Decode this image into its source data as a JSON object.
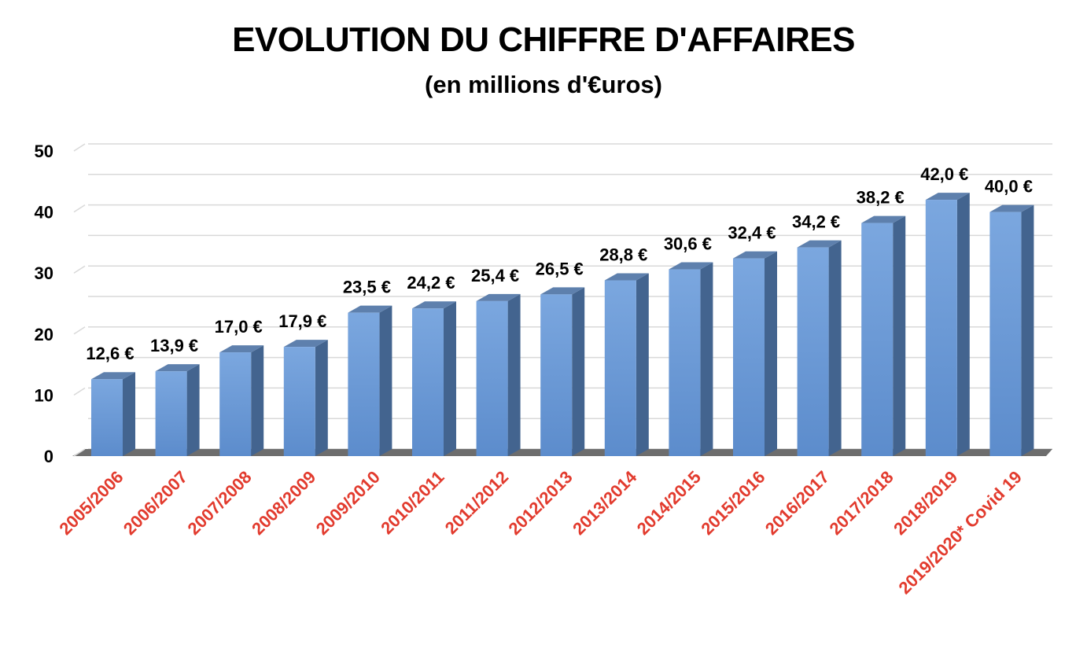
{
  "colors": {
    "bar_front": "#6b9ad8",
    "bar_side": "#43648f",
    "bar_top": "#5e80ad",
    "floor": "#6d6d6d",
    "category_label": "#e23b2e",
    "grid": "#d9d9d9"
  },
  "chart_data": {
    "type": "bar",
    "title": "EVOLUTION DU CHIFFRE D'AFFAIRES",
    "subtitle": "(en millions d'€uros)",
    "categories": [
      "2005/2006",
      "2006/2007",
      "2007/2008",
      "2008/2009",
      "2009/2010",
      "2010/2011",
      "2011/2012",
      "2012/2013",
      "2013/2014",
      "2014/2015",
      "2015/2016",
      "2016/2017",
      "2017/2018",
      "2018/2019",
      "2019/2020* Covid 19"
    ],
    "values": [
      12.6,
      13.9,
      17.0,
      17.9,
      23.5,
      24.2,
      25.4,
      26.5,
      28.8,
      30.6,
      32.4,
      34.2,
      38.2,
      42.0,
      40.0
    ],
    "data_labels": [
      "12,6 €",
      "13,9 €",
      "17,0 €",
      "17,9 €",
      "23,5 €",
      "24,2 €",
      "25,4 €",
      "26,5 €",
      "28,8 €",
      "30,6 €",
      "32,4 €",
      "34,2 €",
      "38,2 €",
      "42,0 €",
      "40,0 €"
    ],
    "y_ticks": [
      "0",
      "10",
      "20",
      "30",
      "40",
      "50"
    ],
    "ylim": [
      0,
      50
    ],
    "grid": true,
    "style": "3d-column"
  }
}
